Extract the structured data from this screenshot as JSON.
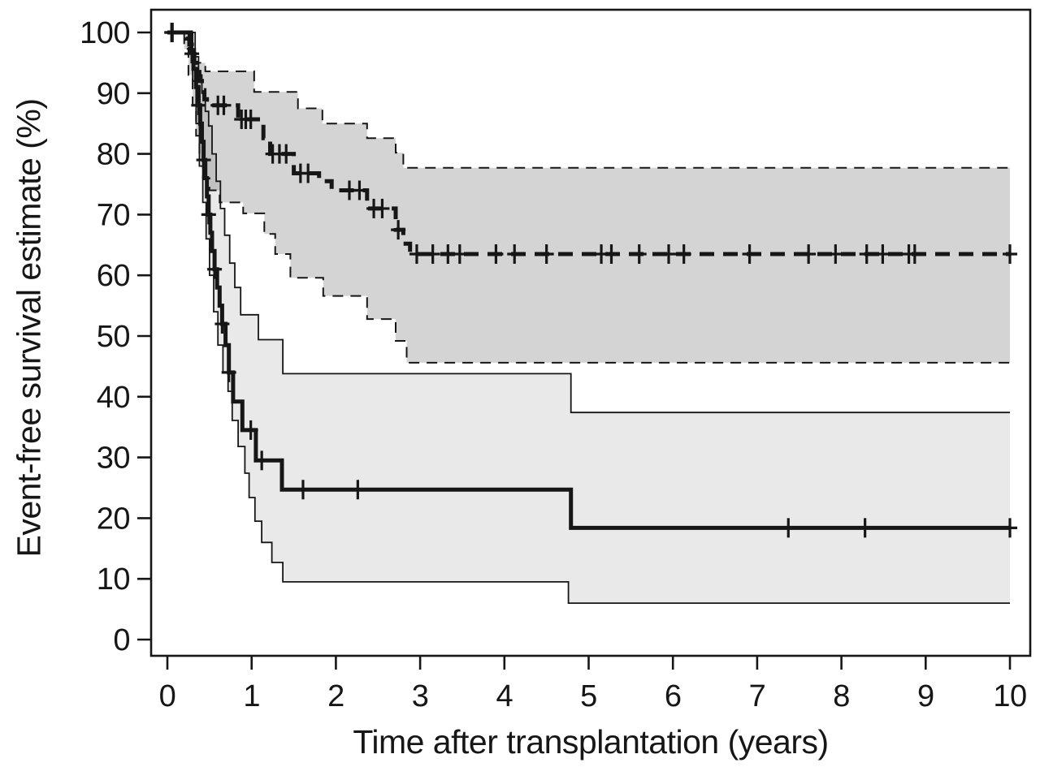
{
  "page": {
    "background": "#ffffff"
  },
  "chart_data": {
    "type": "line",
    "subtype": "kaplan-meier-survival-steps",
    "title": "",
    "xlabel": "Time after transplantation (years)",
    "ylabel": "Event-free survival estimate (%)",
    "xlim": [
      -0.2,
      10.25
    ],
    "ylim": [
      -2.7,
      103.7
    ],
    "xticks": [
      0,
      1,
      2,
      3,
      4,
      5,
      6,
      7,
      8,
      9,
      10
    ],
    "yticks": [
      0,
      10,
      20,
      30,
      40,
      50,
      60,
      70,
      80,
      90,
      100
    ],
    "grid": false,
    "legend": "none",
    "frame_color": "#161616",
    "curve_color": "#161616",
    "series": [
      {
        "name": "dashed-cohort",
        "line_style": "dashed",
        "line_width": 5,
        "color": "#161616",
        "final_value": 63.5,
        "steps": [
          [
            0,
            100
          ],
          [
            0.22,
            99
          ],
          [
            0.26,
            98
          ],
          [
            0.29,
            96.5
          ],
          [
            0.32,
            95
          ],
          [
            0.35,
            93.5
          ],
          [
            0.38,
            92
          ],
          [
            0.41,
            90.5
          ],
          [
            0.44,
            89
          ],
          [
            0.47,
            88
          ],
          [
            0.84,
            85.7
          ],
          [
            1.14,
            82.6
          ],
          [
            1.22,
            80
          ],
          [
            1.5,
            76.8
          ],
          [
            1.8,
            75.5
          ],
          [
            1.95,
            74
          ],
          [
            2.37,
            71
          ],
          [
            2.71,
            67.5
          ],
          [
            2.8,
            65.2
          ],
          [
            2.88,
            63.5
          ]
        ],
        "censor_marks": [
          [
            0.06,
            100
          ],
          [
            0.29,
            96.5
          ],
          [
            0.6,
            88
          ],
          [
            0.67,
            88
          ],
          [
            0.88,
            85.7
          ],
          [
            0.93,
            85.7
          ],
          [
            0.99,
            85.7
          ],
          [
            1.25,
            80
          ],
          [
            1.33,
            80
          ],
          [
            1.41,
            80
          ],
          [
            1.58,
            76.8
          ],
          [
            1.67,
            76.8
          ],
          [
            2.16,
            74
          ],
          [
            2.28,
            74
          ],
          [
            2.45,
            71
          ],
          [
            2.55,
            71
          ],
          [
            2.74,
            67.5
          ],
          [
            2.96,
            63.5
          ],
          [
            3.15,
            63.5
          ],
          [
            3.33,
            63.5
          ],
          [
            3.47,
            63.5
          ],
          [
            3.9,
            63.5
          ],
          [
            4.12,
            63.5
          ],
          [
            4.5,
            63.5
          ],
          [
            5.15,
            63.5
          ],
          [
            5.27,
            63.5
          ],
          [
            5.6,
            63.5
          ],
          [
            5.95,
            63.5
          ],
          [
            6.13,
            63.5
          ],
          [
            6.91,
            63.5
          ],
          [
            7.61,
            63.5
          ],
          [
            7.93,
            63.5
          ],
          [
            8.3,
            63.5
          ],
          [
            8.49,
            63.5
          ],
          [
            8.8,
            63.5
          ],
          [
            8.87,
            63.5
          ],
          [
            10.0,
            63.5
          ]
        ],
        "band": {
          "fill": "#d4d4d4",
          "fill_opacity": 1,
          "edge_style": "dashed",
          "edge_width": 2,
          "upper_steps": [
            [
              0,
              100
            ],
            [
              0.2,
              97.3
            ],
            [
              0.33,
              95
            ],
            [
              0.45,
              93.6
            ],
            [
              1.03,
              90.2
            ],
            [
              1.55,
              87.5
            ],
            [
              1.84,
              85
            ],
            [
              2.37,
              82.6
            ],
            [
              2.71,
              80.2
            ],
            [
              2.8,
              77.7
            ]
          ],
          "lower_steps": [
            [
              0,
              100
            ],
            [
              0.25,
              93
            ],
            [
              0.3,
              88
            ],
            [
              0.34,
              83
            ],
            [
              0.38,
              79
            ],
            [
              0.42,
              76
            ],
            [
              0.5,
              74
            ],
            [
              0.62,
              72
            ],
            [
              0.9,
              70.2
            ],
            [
              1.15,
              66.8
            ],
            [
              1.28,
              63.5
            ],
            [
              1.46,
              59.6
            ],
            [
              1.85,
              56.6
            ],
            [
              2.37,
              52.8
            ],
            [
              2.71,
              49.2
            ],
            [
              2.84,
              45.6
            ]
          ]
        }
      },
      {
        "name": "solid-cohort",
        "line_style": "solid",
        "line_width": 5,
        "color": "#161616",
        "final_value": 18.4,
        "steps": [
          [
            0,
            100
          ],
          [
            0.28,
            97
          ],
          [
            0.31,
            94
          ],
          [
            0.34,
            91
          ],
          [
            0.37,
            88
          ],
          [
            0.39,
            85
          ],
          [
            0.41,
            82
          ],
          [
            0.43,
            79
          ],
          [
            0.45,
            76
          ],
          [
            0.47,
            73
          ],
          [
            0.49,
            70
          ],
          [
            0.51,
            67
          ],
          [
            0.53,
            64
          ],
          [
            0.56,
            61
          ],
          [
            0.59,
            58
          ],
          [
            0.62,
            55
          ],
          [
            0.65,
            52
          ],
          [
            0.69,
            48.5
          ],
          [
            0.73,
            44
          ],
          [
            0.78,
            39.2
          ],
          [
            0.89,
            34.5
          ],
          [
            1.05,
            29.5
          ],
          [
            1.36,
            24.7
          ],
          [
            4.79,
            18.4
          ]
        ],
        "censor_marks": [
          [
            0.05,
            100
          ],
          [
            0.37,
            88
          ],
          [
            0.43,
            79
          ],
          [
            0.49,
            70
          ],
          [
            0.56,
            61
          ],
          [
            0.65,
            52
          ],
          [
            0.73,
            44
          ],
          [
            0.99,
            34.5
          ],
          [
            1.12,
            29.5
          ],
          [
            1.61,
            24.7
          ],
          [
            2.26,
            24.7
          ],
          [
            7.37,
            18.4
          ],
          [
            8.28,
            18.4
          ],
          [
            10.0,
            18.4
          ]
        ],
        "band": {
          "fill": "#000000",
          "fill_opacity": 0.085,
          "edge_style": "solid",
          "edge_width": 1.8,
          "upper_steps": [
            [
              0,
              100
            ],
            [
              0.33,
              96
            ],
            [
              0.37,
              93
            ],
            [
              0.41,
              90
            ],
            [
              0.45,
              87
            ],
            [
              0.49,
              84.6
            ],
            [
              0.53,
              80
            ],
            [
              0.58,
              75.5
            ],
            [
              0.63,
              71
            ],
            [
              0.68,
              66.6
            ],
            [
              0.74,
              62
            ],
            [
              0.8,
              58
            ],
            [
              0.87,
              53.5
            ],
            [
              1.08,
              49.4
            ],
            [
              1.37,
              43.8
            ],
            [
              4.79,
              37.4
            ]
          ],
          "lower_steps": [
            [
              0,
              100
            ],
            [
              0.3,
              92
            ],
            [
              0.34,
              85
            ],
            [
              0.38,
              78
            ],
            [
              0.42,
              72
            ],
            [
              0.46,
              66
            ],
            [
              0.5,
              60
            ],
            [
              0.55,
              54
            ],
            [
              0.6,
              48.5
            ],
            [
              0.66,
              44
            ],
            [
              0.72,
              40.9
            ],
            [
              0.77,
              36.1
            ],
            [
              0.84,
              31.8
            ],
            [
              0.92,
              27.4
            ],
            [
              0.97,
              23.4
            ],
            [
              1.04,
              19.5
            ],
            [
              1.12,
              16.0
            ],
            [
              1.24,
              12.7
            ],
            [
              1.37,
              9.5
            ],
            [
              4.76,
              6.0
            ]
          ]
        }
      }
    ]
  }
}
